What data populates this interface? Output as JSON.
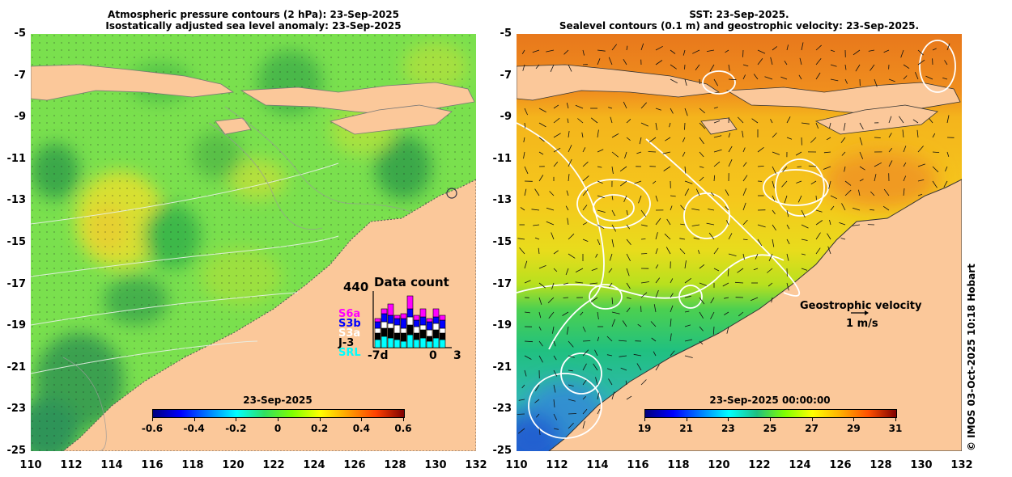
{
  "left_panel": {
    "title_line1": "Atmospheric pressure contours (2 hPa): 23-Sep-2025",
    "title_line2": "Isostatically adjusted sea level anomaly: 23-Sep-2025",
    "y_ticks": [
      "-5",
      "-7",
      "-9",
      "-11",
      "-13",
      "-15",
      "-17",
      "-19",
      "-21",
      "-23",
      "-25"
    ],
    "x_ticks": [
      "110",
      "112",
      "114",
      "116",
      "118",
      "120",
      "122",
      "124",
      "126",
      "128",
      "130",
      "132"
    ],
    "colorbar": {
      "title": "23-Sep-2025",
      "ticks": [
        "-0.6",
        "-0.4",
        "-0.2",
        "0",
        "0.2",
        "0.4",
        "0.6"
      ]
    },
    "data_count": {
      "title": "Data count",
      "max_label": "440",
      "x_labels": [
        "-7d",
        "0",
        "3"
      ],
      "missions": [
        {
          "name": "S6a",
          "color": "#ff00ff"
        },
        {
          "name": "S3b",
          "color": "#0000ff"
        },
        {
          "name": "S3a",
          "color": "#ffffff"
        },
        {
          "name": "J-3",
          "color": "#000000"
        },
        {
          "name": "SRL",
          "color": "#00ffff"
        }
      ]
    }
  },
  "right_panel": {
    "title_line1": "SST: 23-Sep-2025.",
    "title_line2": "Sealevel contours (0.1 m) and geostrophic velocity: 23-Sep-2025.",
    "y_ticks": [
      "-5",
      "-7",
      "-9",
      "-11",
      "-13",
      "-15",
      "-17",
      "-19",
      "-21",
      "-23",
      "-25"
    ],
    "x_ticks": [
      "110",
      "112",
      "114",
      "116",
      "118",
      "120",
      "122",
      "124",
      "126",
      "128",
      "130",
      "132"
    ],
    "colorbar": {
      "title": "23-Sep-2025 00:00:00",
      "ticks": [
        "19",
        "21",
        "23",
        "25",
        "27",
        "29",
        "31"
      ]
    },
    "velocity_legend_line1": "Geostrophic velocity",
    "velocity_legend_line2": "1 m/s"
  },
  "credit": "© IMOS 03-Oct-2025 10:18 Hobart",
  "colors": {
    "land": "#fbc89a",
    "sla_green": "#6ee04a",
    "sst_orange": "#f08a1e",
    "sst_yellow": "#f3d21c"
  }
}
